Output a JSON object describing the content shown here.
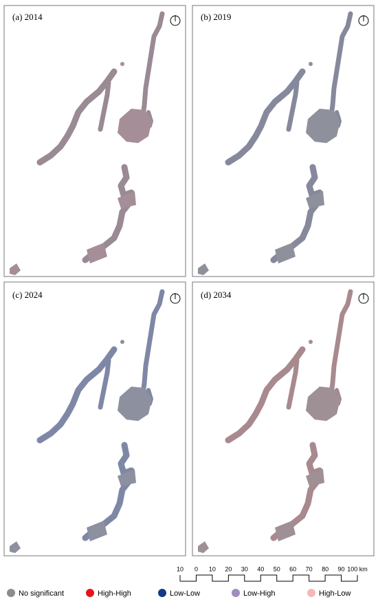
{
  "panels": [
    {
      "label": "(a) 2014"
    },
    {
      "label": "(b) 2019"
    },
    {
      "label": "(c) 2024"
    },
    {
      "label": "(d) 2034"
    }
  ],
  "scale_bar": {
    "labels": [
      "10",
      "0",
      "10",
      "20",
      "30",
      "40",
      "50",
      "60",
      "70",
      "80",
      "90",
      "100 km"
    ]
  },
  "legend": [
    {
      "name": "No significant",
      "color": "#8c8c8c"
    },
    {
      "name": "High-High",
      "color": "#e8141b"
    },
    {
      "name": "Low-Low",
      "color": "#12398a"
    },
    {
      "name": "Low-High",
      "color": "#a08cbf"
    },
    {
      "name": "High-Low",
      "color": "#f4b8b8"
    }
  ]
}
